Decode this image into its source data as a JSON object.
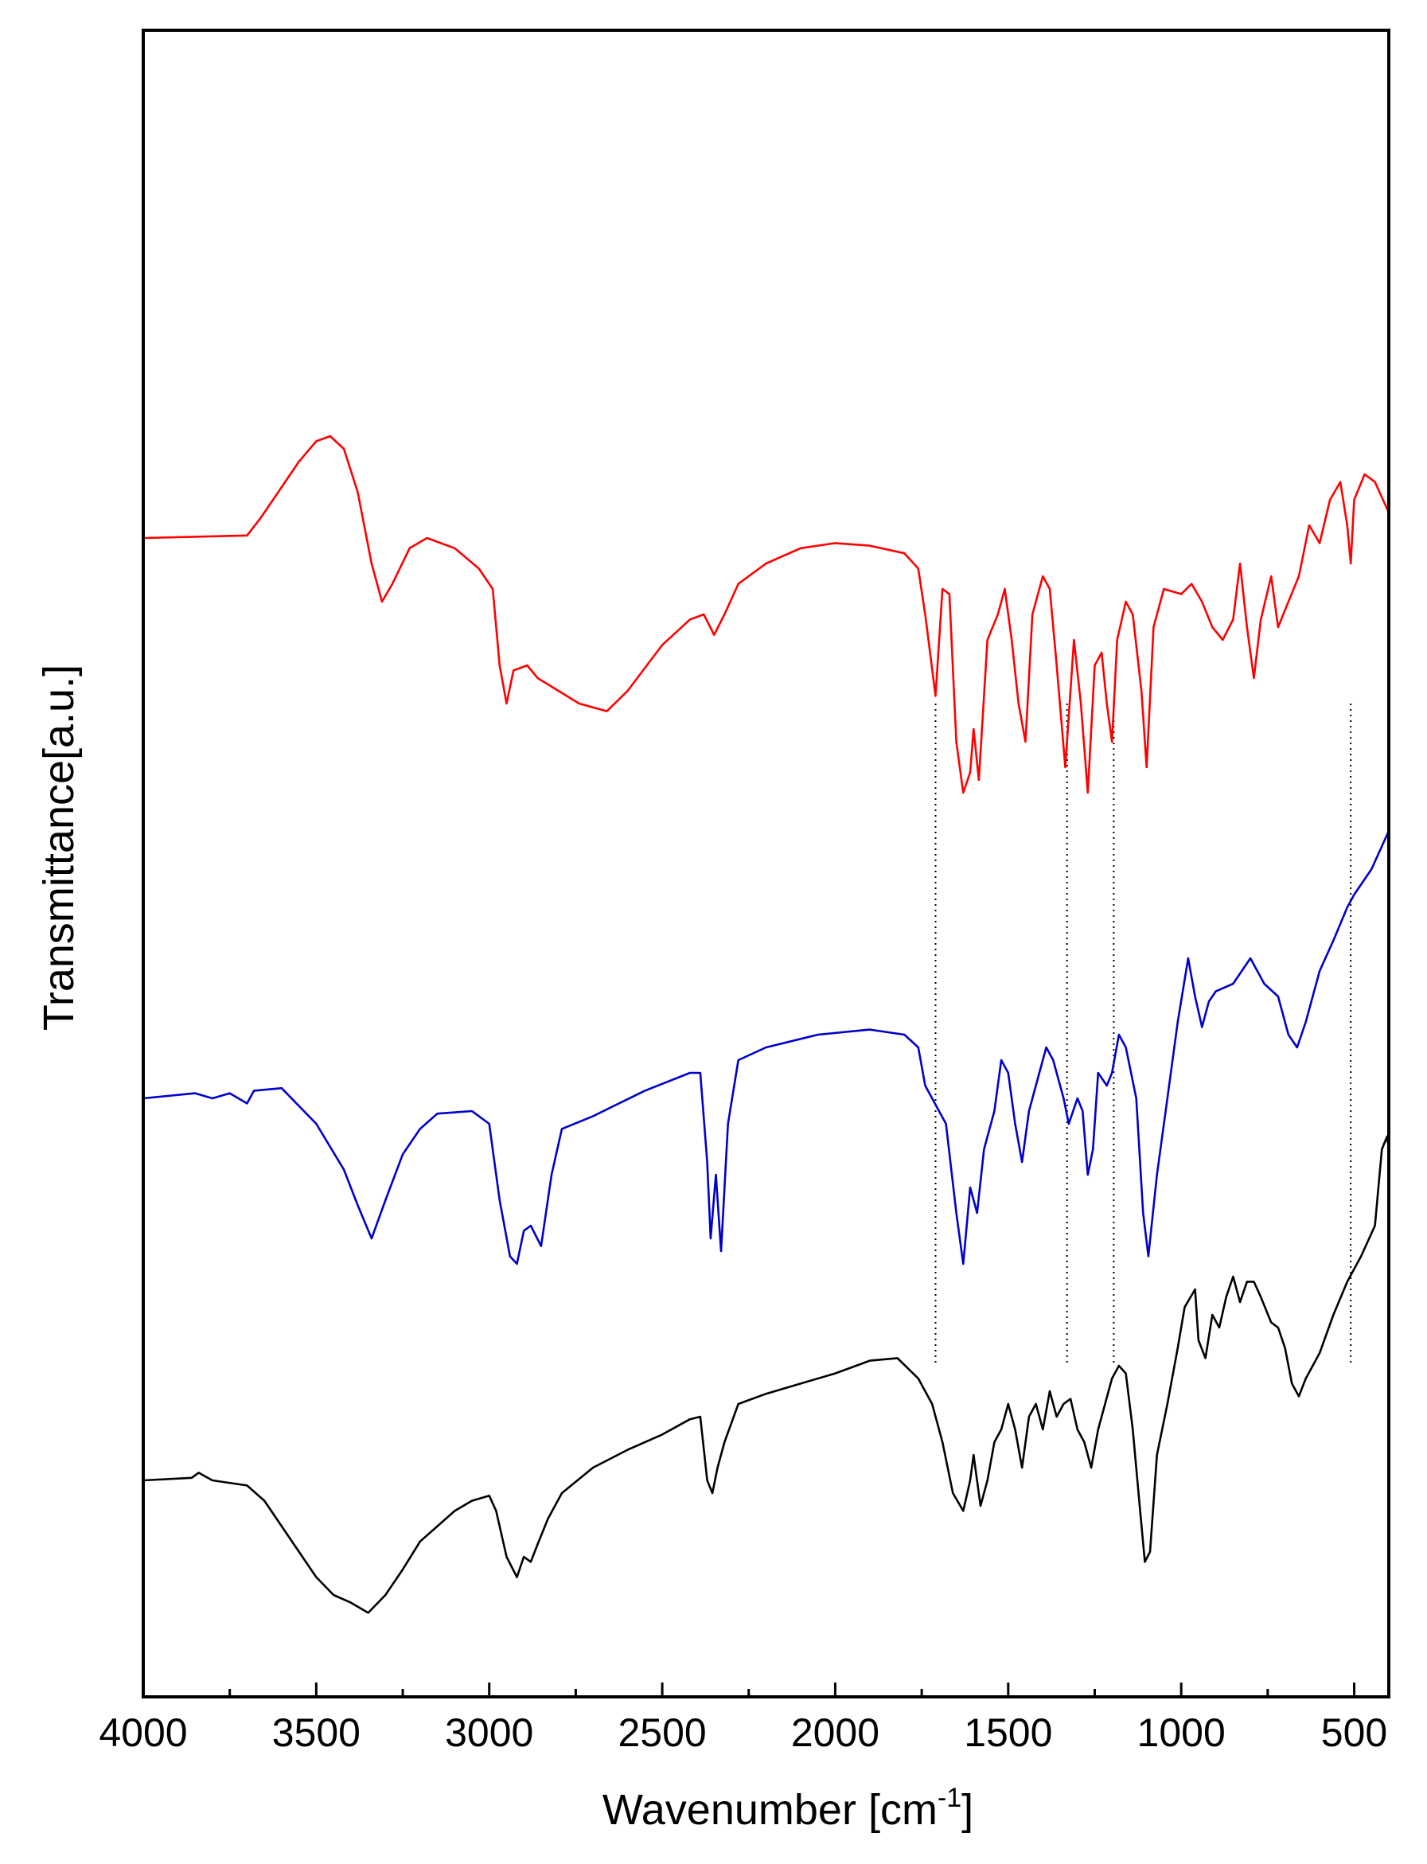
{
  "chart_data": {
    "type": "line",
    "xlabel": "Wavenumber [cm",
    "xlabel_sup": "-1",
    "xlabel_end": "]",
    "ylabel": "Transmittance[a.u.]",
    "xlim": [
      4000,
      400
    ],
    "x_reversed": true,
    "xticks": [
      4000,
      3500,
      3000,
      2500,
      2000,
      1500,
      1000,
      500
    ],
    "xtick_labels": [
      "4000",
      "3500",
      "3000",
      "2500",
      "2000",
      "1500",
      "1000",
      "500"
    ],
    "yticks": [],
    "grid": false,
    "legend": "none",
    "reference_lines_cm-1": [
      1710,
      1330,
      1195,
      510
    ],
    "series": [
      {
        "color": "#ff0000",
        "offset": 3.0,
        "points": [
          [
            4000,
            0.7
          ],
          [
            3700,
            0.71
          ],
          [
            3660,
            0.78
          ],
          [
            3600,
            0.9
          ],
          [
            3550,
            1.0
          ],
          [
            3500,
            1.08
          ],
          [
            3460,
            1.1
          ],
          [
            3420,
            1.05
          ],
          [
            3380,
            0.88
          ],
          [
            3340,
            0.6
          ],
          [
            3310,
            0.45
          ],
          [
            3280,
            0.52
          ],
          [
            3230,
            0.66
          ],
          [
            3180,
            0.7
          ],
          [
            3100,
            0.66
          ],
          [
            3030,
            0.58
          ],
          [
            2990,
            0.5
          ],
          [
            2970,
            0.2
          ],
          [
            2950,
            0.05
          ],
          [
            2930,
            0.18
          ],
          [
            2890,
            0.2
          ],
          [
            2860,
            0.15
          ],
          [
            2800,
            0.1
          ],
          [
            2740,
            0.05
          ],
          [
            2660,
            0.02
          ],
          [
            2600,
            0.1
          ],
          [
            2500,
            0.28
          ],
          [
            2420,
            0.38
          ],
          [
            2380,
            0.4
          ],
          [
            2350,
            0.32
          ],
          [
            2320,
            0.4
          ],
          [
            2280,
            0.52
          ],
          [
            2200,
            0.6
          ],
          [
            2100,
            0.66
          ],
          [
            2000,
            0.68
          ],
          [
            1900,
            0.67
          ],
          [
            1800,
            0.64
          ],
          [
            1760,
            0.58
          ],
          [
            1740,
            0.4
          ],
          [
            1710,
            0.08
          ],
          [
            1690,
            0.5
          ],
          [
            1670,
            0.48
          ],
          [
            1650,
            -0.1
          ],
          [
            1630,
            -0.3
          ],
          [
            1610,
            -0.22
          ],
          [
            1600,
            -0.05
          ],
          [
            1585,
            -0.25
          ],
          [
            1560,
            0.3
          ],
          [
            1530,
            0.4
          ],
          [
            1510,
            0.5
          ],
          [
            1490,
            0.3
          ],
          [
            1470,
            0.05
          ],
          [
            1450,
            -0.1
          ],
          [
            1430,
            0.4
          ],
          [
            1400,
            0.55
          ],
          [
            1380,
            0.5
          ],
          [
            1360,
            0.2
          ],
          [
            1335,
            -0.2
          ],
          [
            1310,
            0.3
          ],
          [
            1290,
            0.05
          ],
          [
            1270,
            -0.3
          ],
          [
            1250,
            0.2
          ],
          [
            1230,
            0.25
          ],
          [
            1215,
            0.05
          ],
          [
            1200,
            -0.1
          ],
          [
            1185,
            0.3
          ],
          [
            1160,
            0.45
          ],
          [
            1140,
            0.4
          ],
          [
            1115,
            0.1
          ],
          [
            1100,
            -0.2
          ],
          [
            1080,
            0.35
          ],
          [
            1050,
            0.5
          ],
          [
            1000,
            0.48
          ],
          [
            970,
            0.52
          ],
          [
            940,
            0.45
          ],
          [
            910,
            0.35
          ],
          [
            880,
            0.3
          ],
          [
            850,
            0.38
          ],
          [
            830,
            0.6
          ],
          [
            810,
            0.35
          ],
          [
            790,
            0.15
          ],
          [
            770,
            0.38
          ],
          [
            740,
            0.55
          ],
          [
            720,
            0.35
          ],
          [
            690,
            0.45
          ],
          [
            660,
            0.55
          ],
          [
            630,
            0.75
          ],
          [
            600,
            0.68
          ],
          [
            570,
            0.85
          ],
          [
            540,
            0.92
          ],
          [
            520,
            0.75
          ],
          [
            510,
            0.6
          ],
          [
            500,
            0.85
          ],
          [
            470,
            0.95
          ],
          [
            440,
            0.92
          ],
          [
            400,
            0.8
          ]
        ]
      },
      {
        "color": "#0000cc",
        "offset": 1.5,
        "points": [
          [
            4000,
            0.0
          ],
          [
            3850,
            0.02
          ],
          [
            3800,
            0.0
          ],
          [
            3750,
            0.02
          ],
          [
            3700,
            -0.02
          ],
          [
            3680,
            0.03
          ],
          [
            3600,
            0.04
          ],
          [
            3500,
            -0.1
          ],
          [
            3420,
            -0.28
          ],
          [
            3380,
            -0.42
          ],
          [
            3340,
            -0.55
          ],
          [
            3300,
            -0.4
          ],
          [
            3250,
            -0.22
          ],
          [
            3200,
            -0.12
          ],
          [
            3150,
            -0.06
          ],
          [
            3050,
            -0.05
          ],
          [
            3000,
            -0.1
          ],
          [
            2970,
            -0.4
          ],
          [
            2940,
            -0.62
          ],
          [
            2920,
            -0.65
          ],
          [
            2900,
            -0.52
          ],
          [
            2880,
            -0.5
          ],
          [
            2850,
            -0.58
          ],
          [
            2820,
            -0.3
          ],
          [
            2790,
            -0.12
          ],
          [
            2700,
            -0.07
          ],
          [
            2550,
            0.03
          ],
          [
            2420,
            0.1
          ],
          [
            2390,
            0.1
          ],
          [
            2370,
            -0.25
          ],
          [
            2360,
            -0.55
          ],
          [
            2345,
            -0.3
          ],
          [
            2330,
            -0.6
          ],
          [
            2310,
            -0.1
          ],
          [
            2280,
            0.15
          ],
          [
            2200,
            0.2
          ],
          [
            2050,
            0.25
          ],
          [
            1900,
            0.27
          ],
          [
            1800,
            0.25
          ],
          [
            1760,
            0.2
          ],
          [
            1740,
            0.05
          ],
          [
            1700,
            -0.05
          ],
          [
            1680,
            -0.1
          ],
          [
            1650,
            -0.45
          ],
          [
            1630,
            -0.65
          ],
          [
            1610,
            -0.35
          ],
          [
            1590,
            -0.45
          ],
          [
            1570,
            -0.2
          ],
          [
            1540,
            -0.05
          ],
          [
            1520,
            0.15
          ],
          [
            1500,
            0.1
          ],
          [
            1480,
            -0.1
          ],
          [
            1460,
            -0.25
          ],
          [
            1440,
            -0.05
          ],
          [
            1410,
            0.1
          ],
          [
            1390,
            0.2
          ],
          [
            1370,
            0.15
          ],
          [
            1340,
            0.0
          ],
          [
            1325,
            -0.1
          ],
          [
            1300,
            0.0
          ],
          [
            1285,
            -0.05
          ],
          [
            1270,
            -0.3
          ],
          [
            1255,
            -0.2
          ],
          [
            1240,
            0.1
          ],
          [
            1215,
            0.05
          ],
          [
            1200,
            0.1
          ],
          [
            1180,
            0.25
          ],
          [
            1160,
            0.2
          ],
          [
            1130,
            0.0
          ],
          [
            1110,
            -0.45
          ],
          [
            1095,
            -0.62
          ],
          [
            1070,
            -0.3
          ],
          [
            1040,
            0.0
          ],
          [
            1010,
            0.3
          ],
          [
            980,
            0.55
          ],
          [
            960,
            0.4
          ],
          [
            940,
            0.28
          ],
          [
            920,
            0.38
          ],
          [
            900,
            0.42
          ],
          [
            850,
            0.45
          ],
          [
            800,
            0.55
          ],
          [
            760,
            0.45
          ],
          [
            720,
            0.4
          ],
          [
            690,
            0.25
          ],
          [
            665,
            0.2
          ],
          [
            640,
            0.3
          ],
          [
            600,
            0.5
          ],
          [
            560,
            0.62
          ],
          [
            520,
            0.75
          ],
          [
            500,
            0.8
          ],
          [
            450,
            0.9
          ],
          [
            400,
            1.05
          ]
        ]
      },
      {
        "color": "#000000",
        "offset": 0.0,
        "points": [
          [
            4000,
            0.0
          ],
          [
            3860,
            0.01
          ],
          [
            3840,
            0.03
          ],
          [
            3800,
            0.0
          ],
          [
            3700,
            -0.02
          ],
          [
            3650,
            -0.08
          ],
          [
            3600,
            -0.18
          ],
          [
            3550,
            -0.28
          ],
          [
            3500,
            -0.38
          ],
          [
            3450,
            -0.45
          ],
          [
            3400,
            -0.48
          ],
          [
            3350,
            -0.52
          ],
          [
            3300,
            -0.45
          ],
          [
            3250,
            -0.35
          ],
          [
            3200,
            -0.24
          ],
          [
            3150,
            -0.18
          ],
          [
            3100,
            -0.12
          ],
          [
            3050,
            -0.08
          ],
          [
            3000,
            -0.06
          ],
          [
            2980,
            -0.12
          ],
          [
            2950,
            -0.3
          ],
          [
            2920,
            -0.38
          ],
          [
            2900,
            -0.3
          ],
          [
            2880,
            -0.32
          ],
          [
            2860,
            -0.25
          ],
          [
            2830,
            -0.15
          ],
          [
            2790,
            -0.05
          ],
          [
            2700,
            0.05
          ],
          [
            2600,
            0.12
          ],
          [
            2500,
            0.18
          ],
          [
            2420,
            0.24
          ],
          [
            2390,
            0.25
          ],
          [
            2370,
            0.0
          ],
          [
            2355,
            -0.05
          ],
          [
            2340,
            0.05
          ],
          [
            2320,
            0.15
          ],
          [
            2280,
            0.3
          ],
          [
            2200,
            0.34
          ],
          [
            2100,
            0.38
          ],
          [
            2000,
            0.42
          ],
          [
            1900,
            0.47
          ],
          [
            1820,
            0.48
          ],
          [
            1760,
            0.4
          ],
          [
            1720,
            0.3
          ],
          [
            1690,
            0.15
          ],
          [
            1660,
            -0.05
          ],
          [
            1630,
            -0.12
          ],
          [
            1610,
            0.0
          ],
          [
            1600,
            0.1
          ],
          [
            1580,
            -0.1
          ],
          [
            1560,
            0.0
          ],
          [
            1540,
            0.15
          ],
          [
            1520,
            0.2
          ],
          [
            1500,
            0.3
          ],
          [
            1480,
            0.2
          ],
          [
            1460,
            0.05
          ],
          [
            1440,
            0.25
          ],
          [
            1420,
            0.3
          ],
          [
            1400,
            0.2
          ],
          [
            1380,
            0.35
          ],
          [
            1360,
            0.25
          ],
          [
            1340,
            0.3
          ],
          [
            1320,
            0.32
          ],
          [
            1300,
            0.2
          ],
          [
            1280,
            0.15
          ],
          [
            1260,
            0.05
          ],
          [
            1240,
            0.2
          ],
          [
            1220,
            0.3
          ],
          [
            1200,
            0.4
          ],
          [
            1180,
            0.45
          ],
          [
            1160,
            0.42
          ],
          [
            1140,
            0.2
          ],
          [
            1120,
            -0.1
          ],
          [
            1105,
            -0.32
          ],
          [
            1090,
            -0.28
          ],
          [
            1070,
            0.1
          ],
          [
            1040,
            0.3
          ],
          [
            1010,
            0.52
          ],
          [
            990,
            0.68
          ],
          [
            960,
            0.75
          ],
          [
            950,
            0.55
          ],
          [
            930,
            0.48
          ],
          [
            910,
            0.65
          ],
          [
            890,
            0.6
          ],
          [
            870,
            0.72
          ],
          [
            850,
            0.8
          ],
          [
            830,
            0.7
          ],
          [
            810,
            0.78
          ],
          [
            790,
            0.78
          ],
          [
            770,
            0.72
          ],
          [
            740,
            0.62
          ],
          [
            720,
            0.6
          ],
          [
            700,
            0.52
          ],
          [
            680,
            0.38
          ],
          [
            660,
            0.33
          ],
          [
            640,
            0.4
          ],
          [
            600,
            0.5
          ],
          [
            560,
            0.65
          ],
          [
            520,
            0.78
          ],
          [
            480,
            0.88
          ],
          [
            440,
            1.0
          ],
          [
            420,
            1.3
          ],
          [
            405,
            1.35
          ],
          [
            400,
            1.3
          ]
        ]
      }
    ]
  }
}
